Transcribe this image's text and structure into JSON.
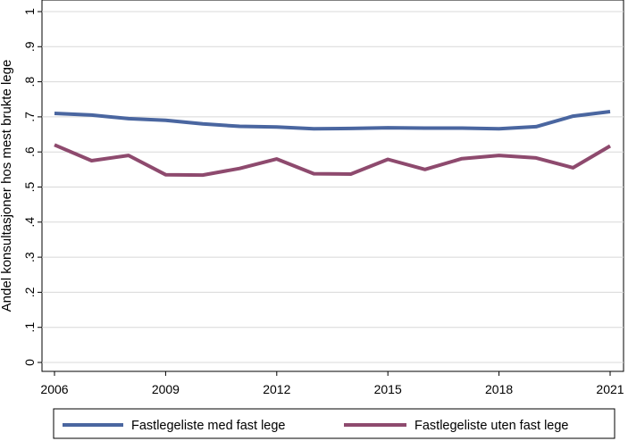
{
  "chart_data": {
    "type": "line",
    "title": "",
    "xlabel": "",
    "ylabel": "Andel konsultasjoner hos mest brukte lege",
    "x": [
      2006,
      2007,
      2008,
      2009,
      2010,
      2011,
      2012,
      2013,
      2014,
      2015,
      2016,
      2017,
      2018,
      2019,
      2020,
      2021
    ],
    "xlim": [
      2006,
      2021
    ],
    "ylim": [
      0,
      1
    ],
    "x_ticks": [
      "2006",
      "2009",
      "2012",
      "2015",
      "2018",
      "2021"
    ],
    "x_tick_values": [
      2006,
      2009,
      2012,
      2015,
      2018,
      2021
    ],
    "y_ticks": [
      "0",
      ".1",
      ".2",
      ".3",
      ".4",
      ".5",
      ".6",
      ".7",
      ".8",
      ".9",
      "1"
    ],
    "y_tick_values": [
      0,
      0.1,
      0.2,
      0.3,
      0.4,
      0.5,
      0.6,
      0.7,
      0.8,
      0.9,
      1
    ],
    "grid": true,
    "legend_position": "bottom",
    "series": [
      {
        "name": "Fastlegeliste med fast lege",
        "color": "#4a66a0",
        "values": [
          0.71,
          0.705,
          0.695,
          0.69,
          0.68,
          0.673,
          0.671,
          0.666,
          0.667,
          0.669,
          0.668,
          0.668,
          0.666,
          0.672,
          0.702,
          0.715
        ]
      },
      {
        "name": "Fastlegeliste uten fast lege",
        "color": "#8e4a6e",
        "values": [
          0.62,
          0.575,
          0.59,
          0.535,
          0.534,
          0.553,
          0.58,
          0.538,
          0.537,
          0.579,
          0.55,
          0.581,
          0.59,
          0.583,
          0.555,
          0.617
        ]
      }
    ]
  }
}
